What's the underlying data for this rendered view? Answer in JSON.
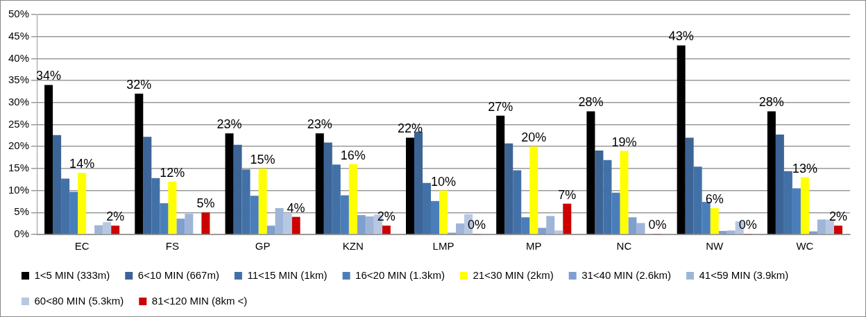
{
  "chart_data": {
    "type": "bar",
    "categories": [
      "EC",
      "FS",
      "GP",
      "KZN",
      "LMP",
      "MP",
      "NC",
      "NW",
      "WC"
    ],
    "ylim": [
      0,
      50
    ],
    "yticks": [
      {
        "value": 0,
        "label": "0%"
      },
      {
        "value": 5,
        "label": "5%"
      },
      {
        "value": 10,
        "label": "10%"
      },
      {
        "value": 15,
        "label": "15%"
      },
      {
        "value": 20,
        "label": "20%"
      },
      {
        "value": 25,
        "label": "25%"
      },
      {
        "value": 30,
        "label": "30%"
      },
      {
        "value": 35,
        "label": "35%"
      },
      {
        "value": 40,
        "label": "40%"
      },
      {
        "value": 45,
        "label": "45%"
      },
      {
        "value": 50,
        "label": "50%"
      }
    ],
    "grid": "y",
    "legend": "bottom",
    "series": [
      {
        "name": "1<5 MIN (333m)",
        "color": "#000000",
        "values": [
          34,
          32,
          23,
          23,
          22,
          27,
          28,
          43,
          28
        ],
        "value_labels": [
          "34%",
          "32%",
          "23%",
          "23%",
          "22%",
          "27%",
          "28%",
          "43%",
          "28%"
        ]
      },
      {
        "name": "6<10 MIN (667m)",
        "color": "#3c6496",
        "values": [
          22.6,
          22.2,
          20.4,
          20.9,
          23.4,
          20.7,
          19.1,
          22,
          22.7
        ]
      },
      {
        "name": "11<15 MIN (1km)",
        "color": "#4271a8",
        "values": [
          12.7,
          12.8,
          14.8,
          15.9,
          11.7,
          14.6,
          16.9,
          15.4,
          14.4
        ]
      },
      {
        "name": "16<20 MIN (1.3km)",
        "color": "#4a7ebb",
        "values": [
          9.7,
          7.1,
          8.8,
          8.9,
          7.6,
          3.9,
          9.5,
          7.4,
          10.5
        ]
      },
      {
        "name": "21<30 MIN (2km)",
        "color": "#ffff00",
        "values": [
          14,
          12,
          15,
          16,
          10,
          20,
          19,
          6,
          13
        ],
        "value_labels": [
          "14%",
          "12%",
          "15%",
          "16%",
          "10%",
          "20%",
          "19%",
          "6%",
          "13%"
        ]
      },
      {
        "name": "31<40 MIN (2.6km)",
        "color": "#7f9fcf",
        "values": [
          0,
          3.6,
          2,
          4.4,
          0.4,
          1.5,
          3.9,
          0.8,
          0.7
        ]
      },
      {
        "name": "41<59 MIN (3.9km)",
        "color": "#9fb5d8",
        "values": [
          2.1,
          4.7,
          6,
          4.1,
          2.5,
          4.2,
          2.6,
          0.9,
          3.4
        ]
      },
      {
        "name": "60<80 MIN (5.3km)",
        "color": "#b9c8e2",
        "values": [
          2.8,
          0,
          4.9,
          4.5,
          4.6,
          0.9,
          0,
          3,
          3.4
        ]
      },
      {
        "name": "81<120 MIN (8km <)",
        "color": "#cc0000",
        "values": [
          2,
          5,
          4,
          2,
          0,
          7,
          0,
          0,
          2
        ],
        "value_labels": [
          "2%",
          "5%",
          "4%",
          "2%",
          "0%",
          "7%",
          "0%",
          "0%",
          "2%"
        ]
      }
    ]
  }
}
